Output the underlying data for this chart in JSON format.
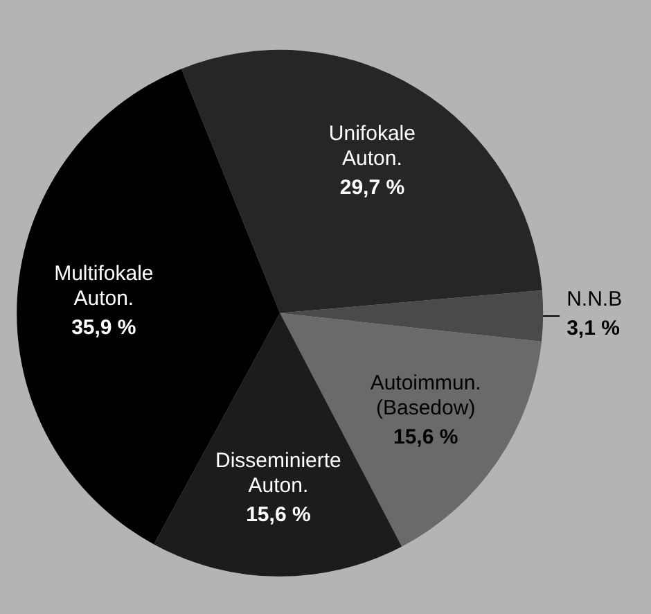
{
  "chart_data": {
    "type": "pie",
    "categories": [
      "Unifokale Auton.",
      "N.N.B",
      "Autoimmun. (Basedow)",
      "Disseminierte Auton.",
      "Multifokale Auton."
    ],
    "values": [
      29.7,
      3.1,
      15.6,
      15.6,
      35.9
    ],
    "value_labels": [
      "29,7 %",
      "3,1 %",
      "15,6 %",
      "15,6 %",
      "35,9 %"
    ],
    "colors": [
      "#262626",
      "#4a4a4a",
      "#6a6a6a",
      "#1c1c1c",
      "#000000"
    ],
    "legend": false
  }
}
